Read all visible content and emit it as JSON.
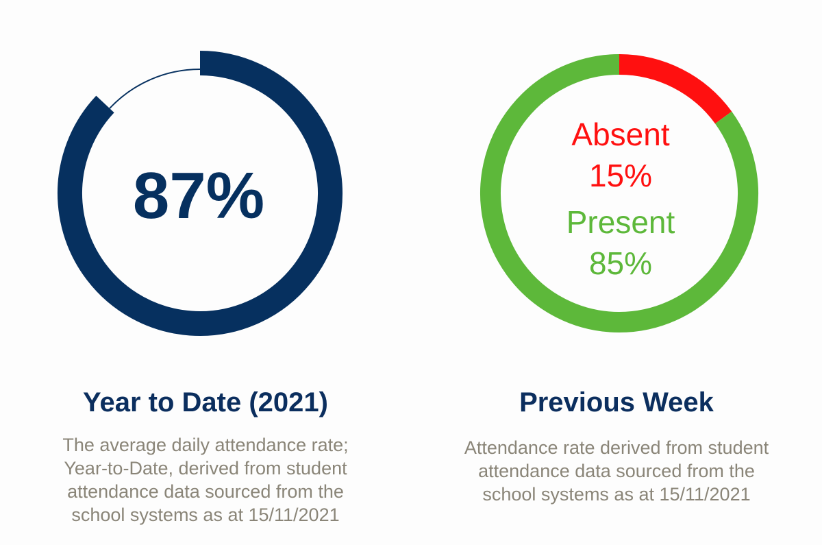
{
  "colors": {
    "navy": "#06305f",
    "absent_red": "#ff1010",
    "present_green": "#5db83a"
  },
  "chart_data": [
    {
      "type": "pie",
      "variant": "progress-ring",
      "value_label": "87%",
      "value": 87,
      "max": 100,
      "title": "Year to Date (2021)",
      "description_lines": [
        "The average daily attendance rate;",
        "Year-to-Date, derived from student",
        "attendance data sourced from the",
        "school systems as at 15/11/2021"
      ]
    },
    {
      "type": "pie",
      "variant": "donut",
      "categories": [
        "Absent",
        "Present"
      ],
      "values": [
        15,
        85
      ],
      "value_labels": [
        "15%",
        "85%"
      ],
      "colors": [
        "#ff1010",
        "#5db83a"
      ],
      "title": "Previous Week",
      "description_lines": [
        "Attendance rate derived from student",
        "attendance data sourced from the",
        "school systems as at 15/11/2021"
      ]
    }
  ]
}
